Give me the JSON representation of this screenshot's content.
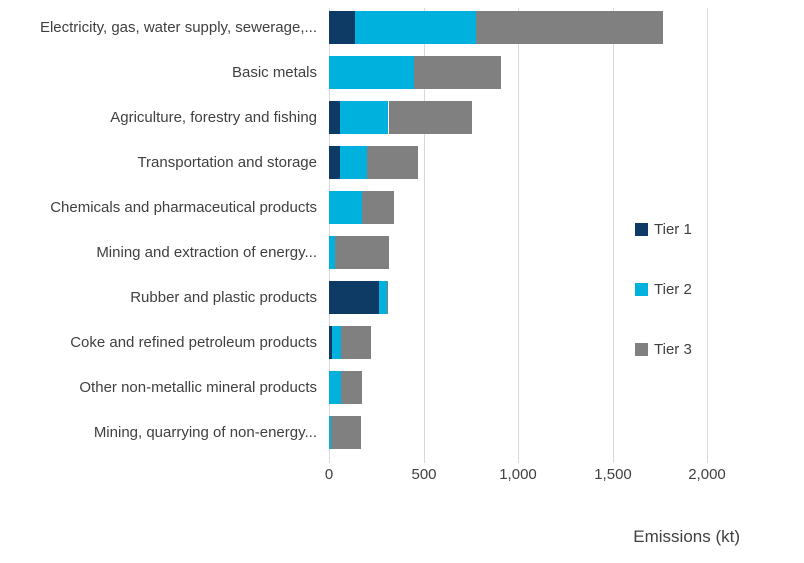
{
  "chart_data": {
    "type": "bar",
    "orientation": "horizontal",
    "stacked": true,
    "title": "",
    "xlabel": "Emissions (kt)",
    "ylabel": "",
    "xlim": [
      0,
      2200
    ],
    "grid": "vertical",
    "x_ticks": [
      0,
      500,
      1000,
      1500,
      2000
    ],
    "x_tick_labels": [
      "0",
      "500",
      "1,000",
      "1,500",
      "2,000"
    ],
    "categories": [
      "Electricity, gas, water supply, sewerage,...",
      "Basic metals",
      "Agriculture, forestry and fishing",
      "Transportation and storage",
      "Chemicals and pharmaceutical products",
      "Mining and extraction of energy...",
      "Rubber and plastic products",
      "Coke and refined petroleum products",
      "Other non-metallic mineral products",
      "Mining, quarrying of non-energy..."
    ],
    "series": [
      {
        "name": "Tier 1",
        "color": "#0d3b66",
        "values": [
          135,
          0,
          60,
          60,
          0,
          0,
          265,
          15,
          0,
          0
        ]
      },
      {
        "name": "Tier 2",
        "color": "#00b0dd",
        "values": [
          645,
          450,
          255,
          140,
          175,
          30,
          40,
          50,
          65,
          10
        ]
      },
      {
        "name": "Tier 3",
        "color": "#808080",
        "values": [
          990,
          460,
          440,
          270,
          170,
          290,
          10,
          155,
          110,
          160
        ]
      }
    ],
    "legend": {
      "position": "right",
      "entries": [
        "Tier 1",
        "Tier 2",
        "Tier 3"
      ]
    },
    "colors": {
      "gridline": "#d9d9d9",
      "text": "#404040"
    }
  }
}
